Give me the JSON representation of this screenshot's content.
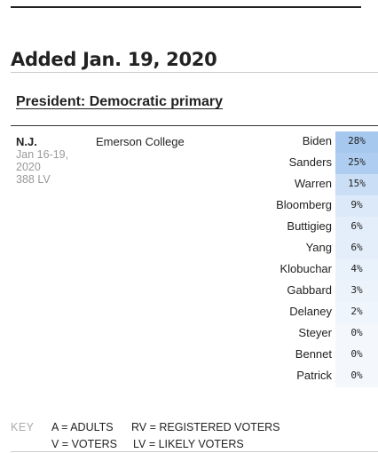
{
  "section_title": "Added Jan. 19, 2020",
  "race_title": "President: Democratic primary",
  "poll": {
    "state": "N.J.",
    "dates": "Jan 16-19, 2020",
    "sample": "388 LV",
    "pollster": "Emerson College",
    "results": [
      {
        "candidate": "Biden",
        "pct": "28%",
        "value": 28
      },
      {
        "candidate": "Sanders",
        "pct": "25%",
        "value": 25
      },
      {
        "candidate": "Warren",
        "pct": "15%",
        "value": 15
      },
      {
        "candidate": "Bloomberg",
        "pct": "9%",
        "value": 9
      },
      {
        "candidate": "Buttigieg",
        "pct": "6%",
        "value": 6
      },
      {
        "candidate": "Yang",
        "pct": "6%",
        "value": 6
      },
      {
        "candidate": "Klobuchar",
        "pct": "4%",
        "value": 4
      },
      {
        "candidate": "Gabbard",
        "pct": "3%",
        "value": 3
      },
      {
        "candidate": "Delaney",
        "pct": "2%",
        "value": 2
      },
      {
        "candidate": "Steyer",
        "pct": "0%",
        "value": 0
      },
      {
        "candidate": "Bennet",
        "pct": "0%",
        "value": 0
      },
      {
        "candidate": "Patrick",
        "pct": "0%",
        "value": 0
      }
    ]
  },
  "key": {
    "label": "KEY",
    "items": [
      "A = ADULTS",
      "RV = REGISTERED VOTERS",
      "V = VOTERS",
      "LV = LIKELY VOTERS"
    ]
  },
  "colors": {
    "cell_min": "#f4f8fd",
    "cell_max": "#a6c8ee"
  }
}
